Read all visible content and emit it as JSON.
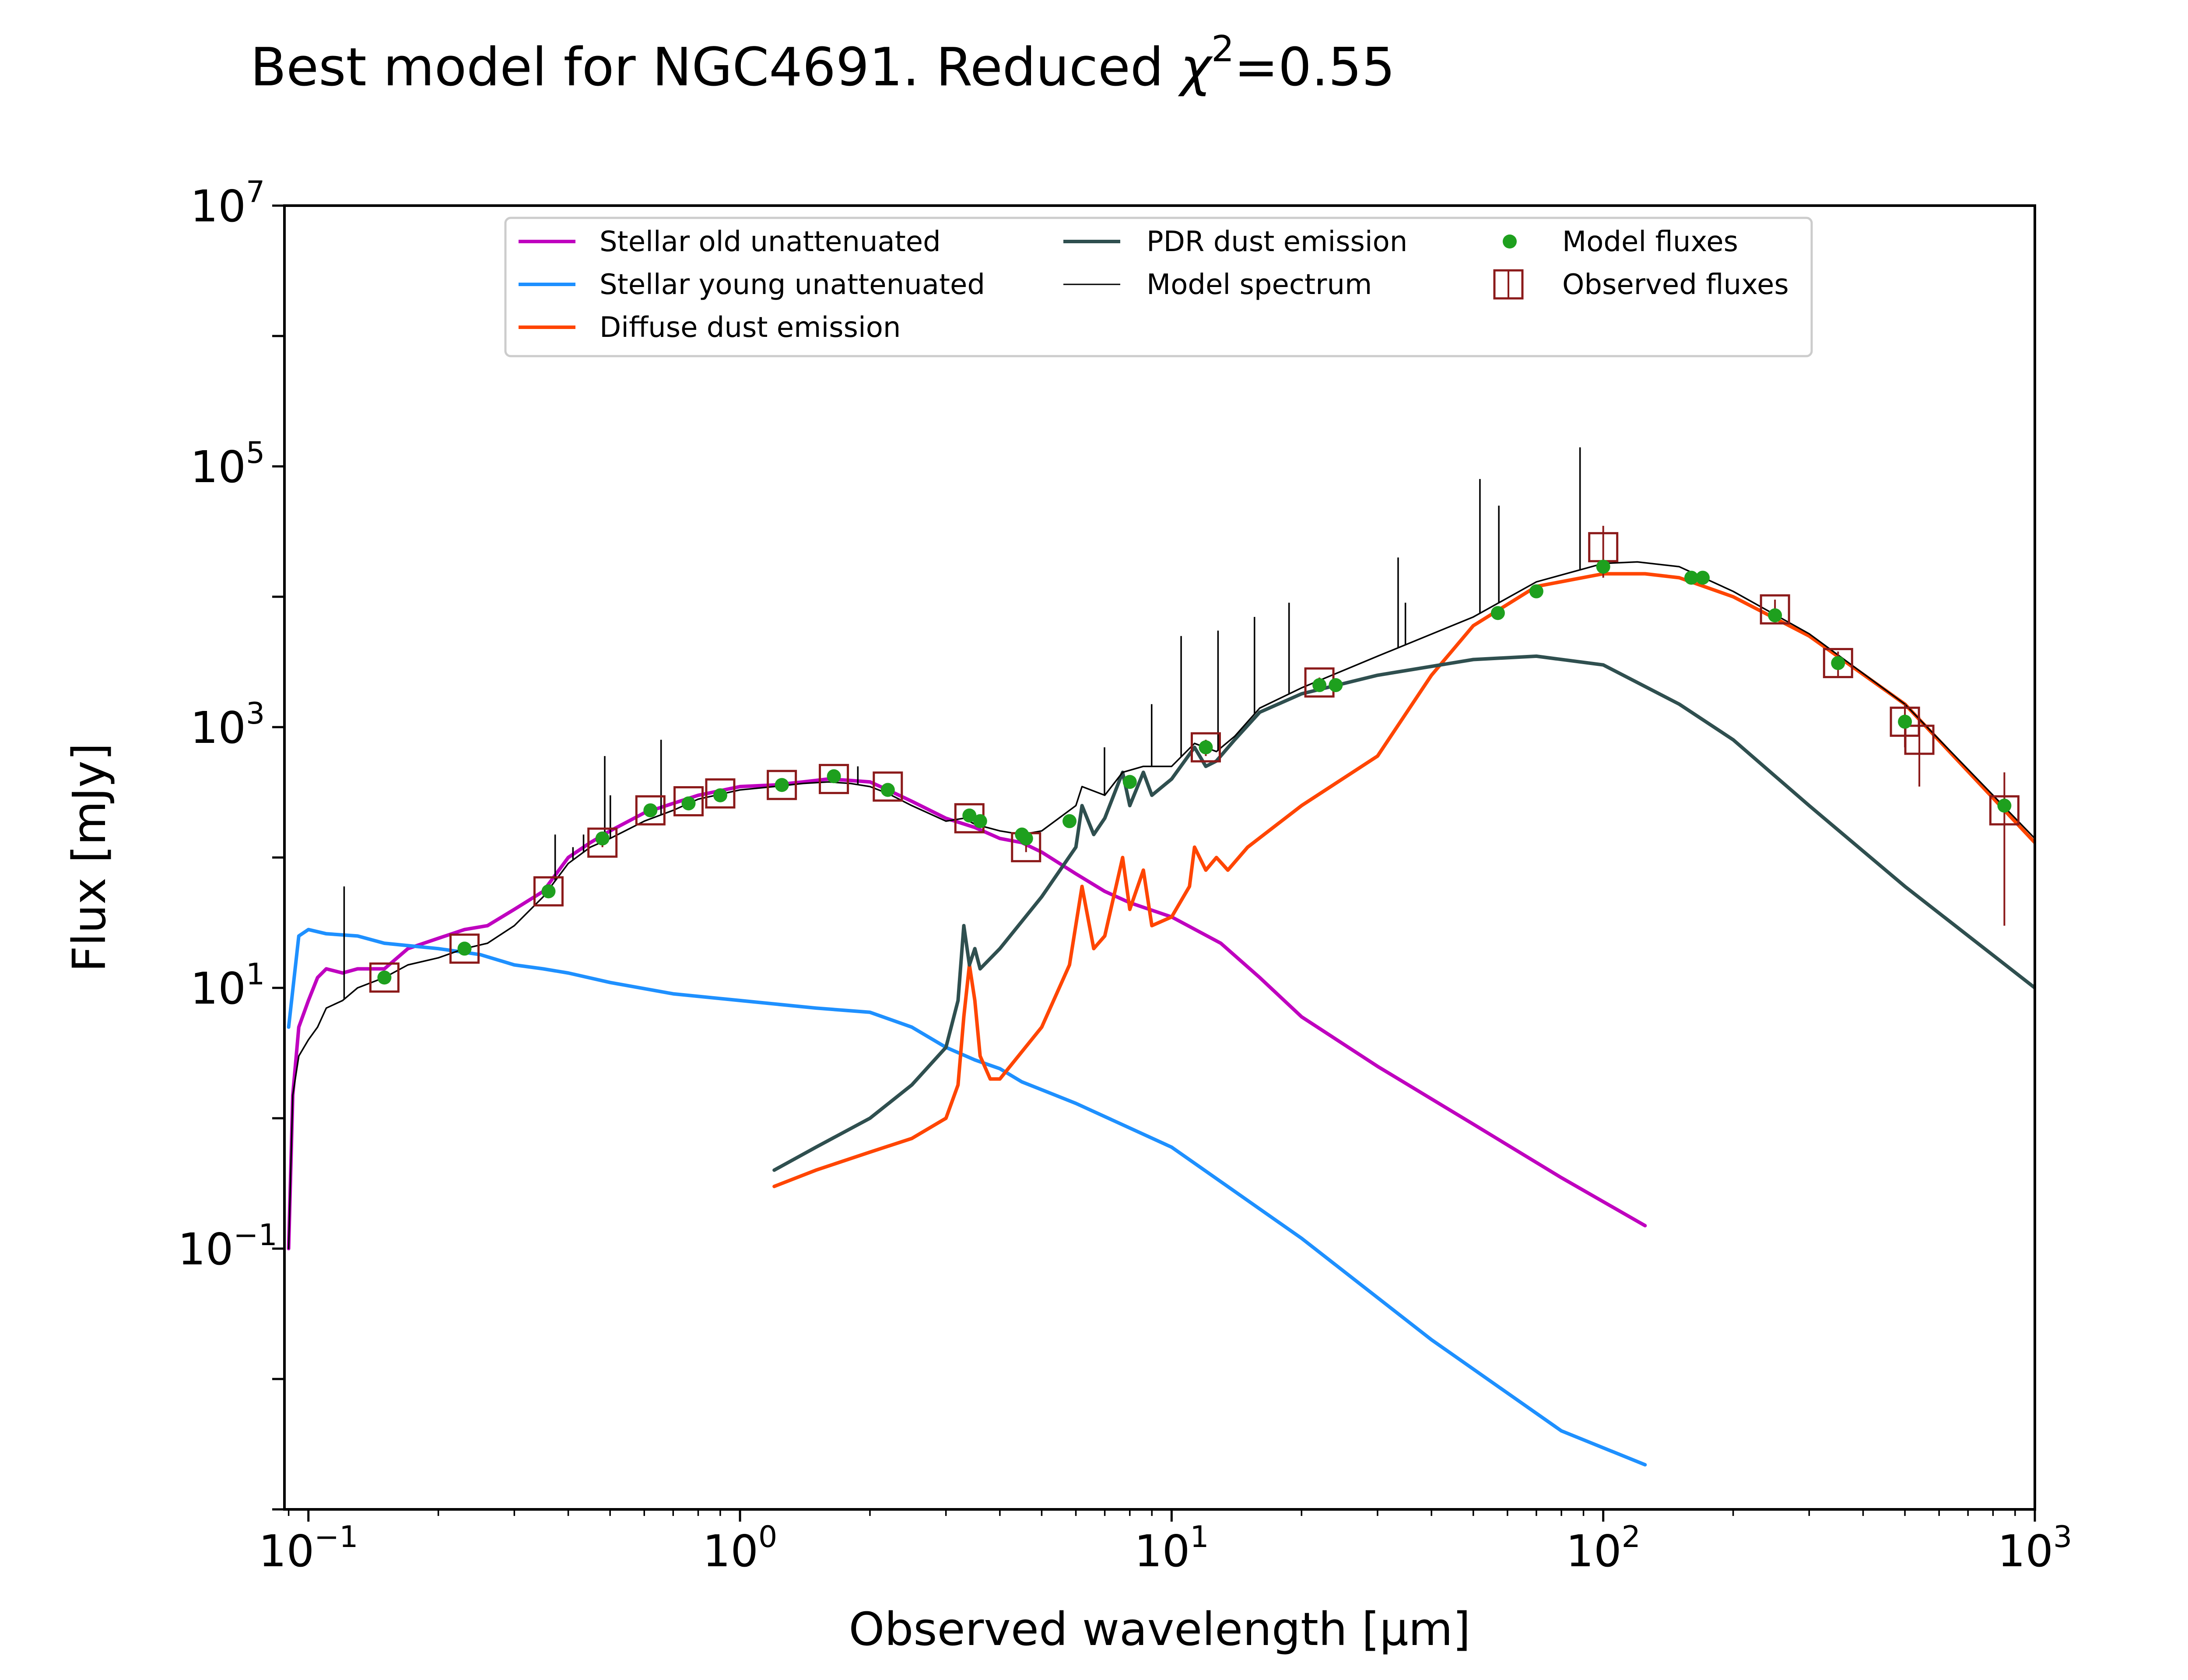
{
  "chart_data": {
    "type": "line",
    "title": {
      "main": "Best model for NGC4691. Reduced ",
      "chi": "χ",
      "chi_exp": "2",
      "value": "=0.55"
    },
    "xlabel": "Observed wavelength [μm]",
    "ylabel": "Flux [mJy]",
    "x_scale": "log",
    "y_scale": "log",
    "xlim": [
      0.088,
      1000
    ],
    "ylim": [
      0.001,
      10000000
    ],
    "x_ticks": [
      {
        "value": 0.1,
        "base": "10",
        "exp": "−1"
      },
      {
        "value": 1,
        "base": "10",
        "exp": "0"
      },
      {
        "value": 10,
        "base": "10",
        "exp": "1"
      },
      {
        "value": 100,
        "base": "10",
        "exp": "2"
      },
      {
        "value": 1000,
        "base": "10",
        "exp": "3"
      }
    ],
    "y_ticks": [
      {
        "value": 0.1,
        "base": "10",
        "exp": "−1"
      },
      {
        "value": 10,
        "base": "10",
        "exp": "1"
      },
      {
        "value": 1000,
        "base": "10",
        "exp": "3"
      },
      {
        "value": 100000,
        "base": "10",
        "exp": "5"
      },
      {
        "value": 10000000,
        "base": "10",
        "exp": "7"
      }
    ],
    "legend_position": "top",
    "grid": false,
    "series": [
      {
        "name": "Stellar old unattenuated",
        "color": "#bf00bf",
        "style": "line",
        "x": [
          0.09,
          0.092,
          0.095,
          0.1,
          0.105,
          0.11,
          0.12,
          0.13,
          0.15,
          0.17,
          0.2,
          0.23,
          0.26,
          0.3,
          0.35,
          0.4,
          0.45,
          0.5,
          0.6,
          0.7,
          0.8,
          1.0,
          1.2,
          1.4,
          1.6,
          1.8,
          2.0,
          2.2,
          2.5,
          3.0,
          3.5,
          4.0,
          4.5,
          5.0,
          6.0,
          7.0,
          8.0,
          10,
          13,
          16,
          20,
          30,
          50,
          80,
          125
        ],
        "y": [
          0.1,
          1.5,
          5,
          8,
          12,
          14,
          13,
          14,
          14,
          20,
          24,
          28,
          30,
          40,
          55,
          100,
          130,
          160,
          220,
          260,
          300,
          350,
          360,
          380,
          400,
          390,
          380,
          330,
          270,
          200,
          170,
          140,
          130,
          110,
          75,
          55,
          45,
          35,
          22,
          12,
          6,
          2.5,
          0.9,
          0.35,
          0.15
        ]
      },
      {
        "name": "Stellar young unattenuated",
        "color": "#1e90ff",
        "style": "line",
        "x": [
          0.09,
          0.095,
          0.1,
          0.11,
          0.13,
          0.15,
          0.2,
          0.25,
          0.3,
          0.35,
          0.4,
          0.5,
          0.7,
          1.0,
          1.5,
          2.0,
          2.5,
          3.0,
          3.5,
          4.0,
          4.5,
          6.0,
          10,
          20,
          40,
          80,
          125
        ],
        "y": [
          5,
          25,
          28,
          26,
          25,
          22,
          20,
          18,
          15,
          14,
          13,
          11,
          9,
          8,
          7,
          6.5,
          5,
          3.5,
          2.8,
          2.4,
          1.9,
          1.3,
          0.6,
          0.12,
          0.02,
          0.004,
          0.0022
        ]
      },
      {
        "name": "Diffuse dust emission",
        "color": "#ff4500",
        "style": "line",
        "x": [
          1.2,
          1.5,
          2.0,
          2.5,
          3.0,
          3.2,
          3.3,
          3.4,
          3.5,
          3.6,
          3.8,
          4.0,
          5.0,
          5.8,
          6.2,
          6.6,
          7.0,
          7.7,
          8.0,
          8.6,
          9.0,
          10,
          11,
          11.3,
          12,
          12.7,
          13.5,
          15,
          20,
          30,
          40,
          50,
          70,
          100,
          125,
          150,
          200,
          300,
          500,
          1000
        ],
        "y": [
          0.3,
          0.4,
          0.55,
          0.7,
          1.0,
          1.8,
          6,
          15,
          8,
          3,
          2,
          2,
          5,
          15,
          60,
          20,
          25,
          100,
          40,
          80,
          30,
          35,
          60,
          120,
          80,
          100,
          80,
          120,
          250,
          600,
          2500,
          6000,
          12000,
          15000,
          15000,
          14000,
          10000,
          5000,
          1500,
          130
        ]
      },
      {
        "name": "PDR dust emission",
        "color": "#2f4f4f",
        "style": "line",
        "x": [
          1.2,
          1.5,
          2.0,
          2.5,
          3.0,
          3.2,
          3.3,
          3.4,
          3.5,
          3.6,
          4.0,
          5.0,
          6.0,
          6.2,
          6.6,
          7.0,
          7.7,
          8.0,
          8.6,
          9.0,
          10,
          11.3,
          12,
          12.7,
          14,
          16,
          20,
          30,
          50,
          70,
          100,
          150,
          200,
          300,
          500,
          1000
        ],
        "y": [
          0.4,
          0.6,
          1.0,
          1.8,
          3.5,
          8,
          30,
          15,
          20,
          14,
          20,
          50,
          120,
          250,
          150,
          200,
          450,
          250,
          450,
          300,
          400,
          700,
          500,
          550,
          800,
          1300,
          1800,
          2500,
          3300,
          3500,
          3000,
          1500,
          800,
          250,
          60,
          10
        ]
      },
      {
        "name": "Model spectrum",
        "color": "#000000",
        "style": "thin",
        "x": [
          0.09,
          0.092,
          0.095,
          0.1,
          0.105,
          0.11,
          0.12,
          0.13,
          0.15,
          0.17,
          0.2,
          0.23,
          0.26,
          0.3,
          0.35,
          0.4,
          0.45,
          0.5,
          0.6,
          0.7,
          0.8,
          1.0,
          1.2,
          1.4,
          1.6,
          1.8,
          2.0,
          2.2,
          2.5,
          3.0,
          3.3,
          3.5,
          4.0,
          4.5,
          5.0,
          6.0,
          6.2,
          7.0,
          7.7,
          8.6,
          10,
          11.3,
          12.7,
          14,
          16,
          20,
          30,
          50,
          70,
          100,
          120,
          150,
          200,
          300,
          500,
          1000
        ],
        "y": [
          0.1,
          1.5,
          3,
          4,
          5,
          7,
          8,
          10,
          12,
          15,
          17,
          20,
          22,
          30,
          50,
          90,
          120,
          140,
          190,
          230,
          280,
          330,
          350,
          370,
          380,
          370,
          350,
          310,
          250,
          190,
          200,
          180,
          160,
          150,
          160,
          250,
          350,
          300,
          450,
          500,
          500,
          750,
          650,
          850,
          1400,
          2000,
          3500,
          7000,
          13000,
          18000,
          18500,
          17000,
          11000,
          5200,
          1500,
          140
        ]
      }
    ],
    "model_fluxes": {
      "name": "Model fluxes",
      "color": "#1ea01e",
      "x": [
        0.15,
        0.23,
        0.36,
        0.48,
        0.62,
        0.76,
        0.9,
        1.25,
        1.65,
        2.2,
        3.4,
        3.6,
        4.5,
        4.6,
        5.8,
        8.0,
        12,
        22,
        24,
        57,
        70,
        100,
        160,
        170,
        250,
        350,
        500,
        850
      ],
      "y": [
        12,
        20,
        55,
        140,
        230,
        260,
        300,
        360,
        420,
        330,
        210,
        190,
        150,
        140,
        190,
        380,
        700,
        2100,
        2100,
        7500,
        11000,
        17000,
        14000,
        14000,
        7200,
        3100,
        1100,
        250
      ]
    },
    "observed_fluxes": {
      "name": "Observed fluxes",
      "color": "#8b1a1a",
      "points": [
        {
          "x": 0.15,
          "y": 12,
          "lo": 11,
          "hi": 13
        },
        {
          "x": 0.23,
          "y": 20,
          "lo": 18,
          "hi": 22
        },
        {
          "x": 0.36,
          "y": 55,
          "lo": 50,
          "hi": 60
        },
        {
          "x": 0.48,
          "y": 130,
          "lo": 120,
          "hi": 140
        },
        {
          "x": 0.62,
          "y": 230,
          "lo": 210,
          "hi": 250
        },
        {
          "x": 0.76,
          "y": 270,
          "lo": 250,
          "hi": 290
        },
        {
          "x": 0.9,
          "y": 310,
          "lo": 290,
          "hi": 330
        },
        {
          "x": 1.25,
          "y": 360,
          "lo": 340,
          "hi": 380
        },
        {
          "x": 1.65,
          "y": 400,
          "lo": 380,
          "hi": 420
        },
        {
          "x": 2.2,
          "y": 350,
          "lo": 330,
          "hi": 370
        },
        {
          "x": 3.4,
          "y": 200,
          "lo": 190,
          "hi": 210
        },
        {
          "x": 4.6,
          "y": 120,
          "lo": 110,
          "hi": 130
        },
        {
          "x": 12,
          "y": 700,
          "lo": 600,
          "hi": 800
        },
        {
          "x": 22,
          "y": 2200,
          "lo": 2000,
          "hi": 2400
        },
        {
          "x": 100,
          "y": 24000,
          "lo": 14000,
          "hi": 35000
        },
        {
          "x": 250,
          "y": 8000,
          "lo": 6500,
          "hi": 9500
        },
        {
          "x": 350,
          "y": 3100,
          "lo": 2400,
          "hi": 3800
        },
        {
          "x": 500,
          "y": 1100,
          "lo": 700,
          "hi": 1500
        },
        {
          "x": 540,
          "y": 800,
          "lo": 350,
          "hi": 1200
        },
        {
          "x": 850,
          "y": 230,
          "lo": 30,
          "hi": 450
        }
      ]
    },
    "emission_lines": [
      {
        "x": 0.121,
        "y": 60
      },
      {
        "x": 0.373,
        "y": 150
      },
      {
        "x": 0.4102,
        "y": 120
      },
      {
        "x": 0.434,
        "y": 150
      },
      {
        "x": 0.486,
        "y": 600
      },
      {
        "x": 0.5007,
        "y": 300
      },
      {
        "x": 0.6563,
        "y": 800
      },
      {
        "x": 1.875,
        "y": 500
      },
      {
        "x": 6.99,
        "y": 700
      },
      {
        "x": 8.99,
        "y": 1500
      },
      {
        "x": 10.52,
        "y": 5000
      },
      {
        "x": 12.81,
        "y": 5500
      },
      {
        "x": 15.56,
        "y": 7000
      },
      {
        "x": 18.71,
        "y": 9000
      },
      {
        "x": 33.48,
        "y": 20000
      },
      {
        "x": 34.81,
        "y": 9000
      },
      {
        "x": 51.8,
        "y": 80000
      },
      {
        "x": 57.3,
        "y": 50000
      },
      {
        "x": 88.36,
        "y": 140000
      }
    ]
  }
}
